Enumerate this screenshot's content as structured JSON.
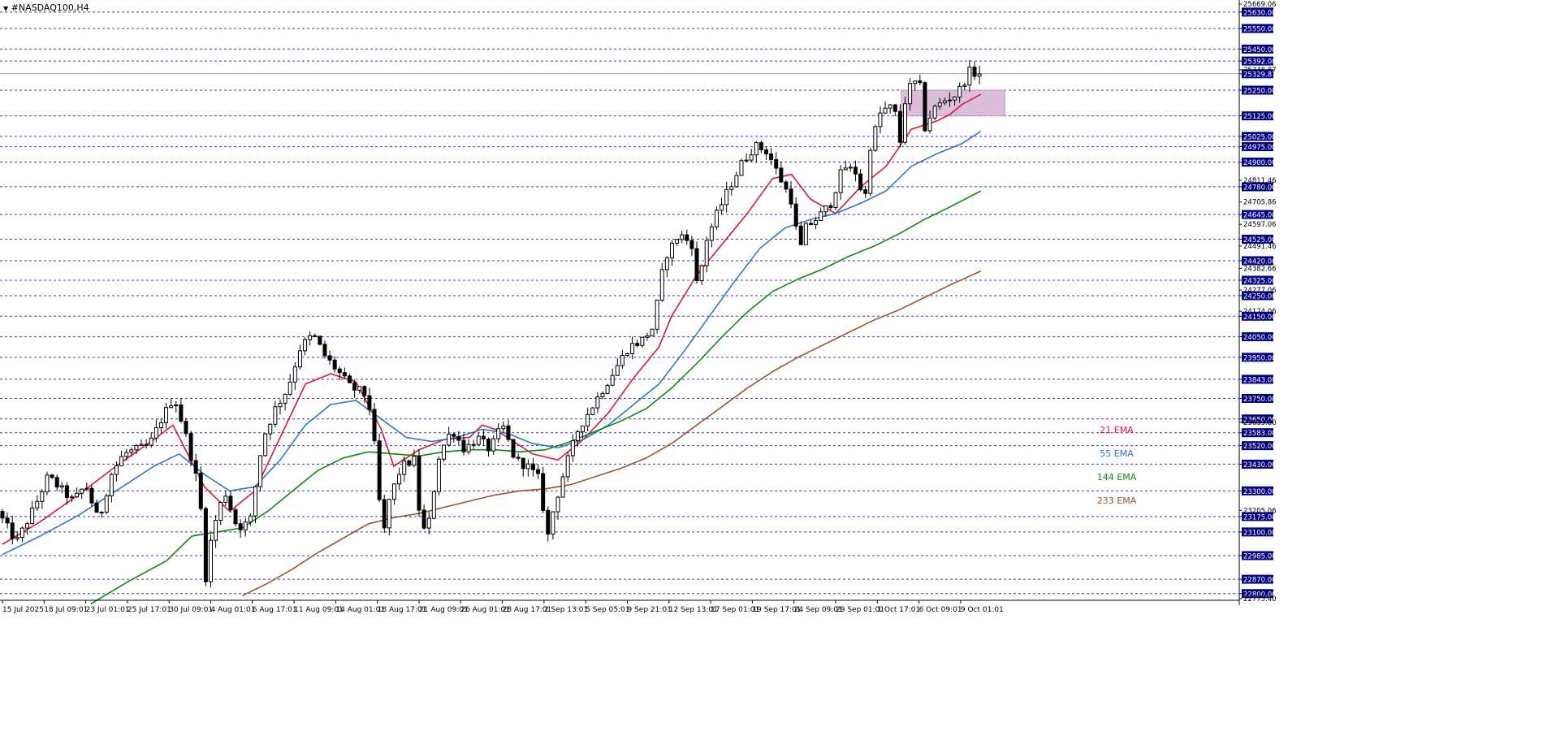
{
  "window": {
    "title": "#NASDAQ100,H4"
  },
  "colors": {
    "background": "#ffffff",
    "grid": "#1a1a9c",
    "up_body": "#ffffff",
    "down_body": "#000000",
    "wick": "#000000",
    "zone_fill": "#d9b8d6",
    "zone_stroke": "#b896b4",
    "price_tag_bg": "#000080",
    "price_tag_text": "#ffffff"
  },
  "chart_data": {
    "type": "candlestick",
    "symbol": "#NASDAQ100",
    "timeframe": "H4",
    "ylim": [
      22775.4,
      25669.06
    ],
    "grid": "horizontal dashed",
    "x_tick_labels": [
      "15 Jul 2025",
      "18 Jul 09:01",
      "23 Jul 01:01",
      "25 Jul 17:01",
      "30 Jul 09:01",
      "4 Aug 01:01",
      "6 Aug 17:01",
      "11 Aug 09:01",
      "14 Aug 01:01",
      "18 Aug 17:01",
      "21 Aug 09:01",
      "26 Aug 01:01",
      "28 Aug 17:01",
      "2 Sep 13:01",
      "5 Sep 05:01",
      "9 Sep 21:01",
      "12 Sep 13:01",
      "17 Sep 01:01",
      "19 Sep 17:01",
      "24 Sep 09:01",
      "29 Sep 01:01",
      "1 Oct 17:01",
      "6 Oct 09:01",
      "9 Oct 01:01"
    ],
    "y_tick_labels": [
      "25669.06",
      "25630.00",
      "25550.00",
      "25450.00",
      "25392.00",
      "25348.87",
      "25329.87",
      "25250.00",
      "25125.00",
      "25025.00",
      "24975.00",
      "24900.00",
      "24811.46",
      "24780.00",
      "24705.86",
      "24645.00",
      "24597.06",
      "24525.00",
      "24491.46",
      "24420.00",
      "24382.66",
      "24325.00",
      "24277.06",
      "24250.00",
      "24174.06",
      "24150.00",
      "24050.00",
      "23950.00",
      "23843.00",
      "23750.00",
      "23650.00",
      "23633.80",
      "23583.00",
      "23520.00",
      "23430.00",
      "23300.00",
      "23205.06",
      "23175.00",
      "23100.00",
      "22985.00",
      "22870.00",
      "22800.00",
      "22775.40"
    ],
    "highlighted_levels": [
      "25630.00",
      "25550.00",
      "25450.00",
      "25392.00",
      "25329.87",
      "25250.00",
      "25125.00",
      "25025.00",
      "24975.00",
      "24900.00",
      "24780.00",
      "24645.00",
      "24525.00",
      "24420.00",
      "24325.00",
      "24250.00",
      "24150.00",
      "24050.00",
      "23950.00",
      "23843.00",
      "23750.00",
      "23650.00",
      "23583.00",
      "23520.00",
      "23430.00",
      "23300.00",
      "23175.00",
      "23100.00",
      "22985.00",
      "22870.00",
      "22800.00"
    ],
    "current_price": "25329.87",
    "horizontal_levels": [
      25630,
      25550,
      25450,
      25392,
      25250,
      25125,
      25025,
      24975,
      24900,
      24780,
      24645,
      24525,
      24420,
      24325,
      24250,
      24150,
      24050,
      23950,
      23843,
      23750,
      23650,
      23583,
      23520,
      23430,
      23300,
      23175,
      23100,
      22985,
      22870,
      22800
    ],
    "zone": {
      "y_top": 25250,
      "y_bottom": 25125,
      "from_tick": "1 Oct 17:01",
      "to_after_tick": "9 Oct 01:01"
    },
    "ema_legend": [
      {
        "label": "21 EMA",
        "color": "#e0143c"
      },
      {
        "label": "55 EMA",
        "color": "#2e78c0"
      },
      {
        "label": "144 EMA",
        "color": "#0d8a0d"
      },
      {
        "label": "233 EMA",
        "color": "#a0522d"
      }
    ],
    "price_path": [
      [
        0,
        23200
      ],
      [
        1.5,
        23050
      ],
      [
        3,
        23230
      ],
      [
        4,
        23370
      ],
      [
        6,
        23250
      ],
      [
        7,
        23330
      ],
      [
        8,
        23150
      ],
      [
        9,
        23380
      ],
      [
        10,
        23480
      ],
      [
        12,
        23520
      ],
      [
        13,
        23650
      ],
      [
        14,
        23760
      ],
      [
        15,
        23550
      ],
      [
        16,
        23300
      ],
      [
        16.5,
        22880
      ],
      [
        17,
        23100
      ],
      [
        18,
        23300
      ],
      [
        19,
        23120
      ],
      [
        20,
        23150
      ],
      [
        21,
        23550
      ],
      [
        22,
        23700
      ],
      [
        23,
        23800
      ],
      [
        24,
        24000
      ],
      [
        25,
        24060
      ],
      [
        26,
        23950
      ],
      [
        27,
        23880
      ],
      [
        28,
        23800
      ],
      [
        29,
        23780
      ],
      [
        29.5,
        23700
      ],
      [
        30,
        23450
      ],
      [
        30.5,
        23050
      ],
      [
        31,
        23250
      ],
      [
        32,
        23420
      ],
      [
        33,
        23450
      ],
      [
        33.5,
        23150
      ],
      [
        34,
        23080
      ],
      [
        35,
        23480
      ],
      [
        36,
        23600
      ],
      [
        37,
        23500
      ],
      [
        38,
        23560
      ],
      [
        39,
        23500
      ],
      [
        40,
        23620
      ],
      [
        41,
        23450
      ],
      [
        42,
        23420
      ],
      [
        43,
        23350
      ],
      [
        43.5,
        23050
      ],
      [
        44,
        23200
      ],
      [
        45,
        23420
      ],
      [
        46,
        23600
      ],
      [
        47,
        23700
      ],
      [
        48,
        23800
      ],
      [
        49,
        23900
      ],
      [
        50,
        24000
      ],
      [
        51,
        24030
      ],
      [
        52,
        24100
      ],
      [
        52.5,
        24320
      ],
      [
        53,
        24450
      ],
      [
        54,
        24550
      ],
      [
        55,
        24500
      ],
      [
        55.5,
        24260
      ],
      [
        56,
        24500
      ],
      [
        57,
        24650
      ],
      [
        58,
        24780
      ],
      [
        59,
        24900
      ],
      [
        60,
        24980
      ],
      [
        61,
        24950
      ],
      [
        62,
        24820
      ],
      [
        63,
        24700
      ],
      [
        63.5,
        24450
      ],
      [
        64,
        24580
      ],
      [
        65,
        24630
      ],
      [
        66,
        24700
      ],
      [
        67,
        24880
      ],
      [
        68,
        24850
      ],
      [
        68.7,
        24700
      ],
      [
        69,
        24950
      ],
      [
        70,
        25150
      ],
      [
        71,
        25170
      ],
      [
        71.5,
        25000
      ],
      [
        72,
        25250
      ],
      [
        73,
        25300
      ],
      [
        73.5,
        25050
      ],
      [
        74,
        25150
      ],
      [
        75,
        25200
      ],
      [
        76,
        25230
      ],
      [
        77,
        25340
      ],
      [
        77.5,
        25330
      ]
    ],
    "ema_paths": {
      "21 EMA": [
        [
          0,
          23040
        ],
        [
          3,
          23150
        ],
        [
          6,
          23280
        ],
        [
          9,
          23420
        ],
        [
          12,
          23550
        ],
        [
          13.5,
          23620
        ],
        [
          16,
          23320
        ],
        [
          18,
          23200
        ],
        [
          20,
          23300
        ],
        [
          22,
          23560
        ],
        [
          24,
          23820
        ],
        [
          26,
          23870
        ],
        [
          28,
          23830
        ],
        [
          30,
          23600
        ],
        [
          31,
          23420
        ],
        [
          33,
          23500
        ],
        [
          35,
          23550
        ],
        [
          37,
          23560
        ],
        [
          38,
          23620
        ],
        [
          39,
          23600
        ],
        [
          40,
          23560
        ],
        [
          42,
          23480
        ],
        [
          44,
          23450
        ],
        [
          46,
          23550
        ],
        [
          48,
          23680
        ],
        [
          50,
          23850
        ],
        [
          52,
          24000
        ],
        [
          53,
          24150
        ],
        [
          55,
          24350
        ],
        [
          57,
          24500
        ],
        [
          59,
          24650
        ],
        [
          61,
          24820
        ],
        [
          62.5,
          24840
        ],
        [
          64,
          24720
        ],
        [
          66,
          24650
        ],
        [
          68,
          24780
        ],
        [
          70,
          24880
        ],
        [
          72,
          25060
        ],
        [
          74,
          25100
        ],
        [
          75,
          25130
        ],
        [
          76,
          25180
        ],
        [
          77.5,
          25230
        ]
      ],
      "55 EMA": [
        [
          0,
          22990
        ],
        [
          3,
          23080
        ],
        [
          6,
          23180
        ],
        [
          9,
          23300
        ],
        [
          12,
          23420
        ],
        [
          14,
          23480
        ],
        [
          16,
          23380
        ],
        [
          18,
          23300
        ],
        [
          20,
          23320
        ],
        [
          22,
          23450
        ],
        [
          24,
          23620
        ],
        [
          26,
          23720
        ],
        [
          28,
          23740
        ],
        [
          30,
          23650
        ],
        [
          32,
          23560
        ],
        [
          34,
          23540
        ],
        [
          36,
          23560
        ],
        [
          38,
          23600
        ],
        [
          40,
          23580
        ],
        [
          42,
          23530
        ],
        [
          44,
          23510
        ],
        [
          46,
          23550
        ],
        [
          48,
          23620
        ],
        [
          50,
          23720
        ],
        [
          52,
          23820
        ],
        [
          54,
          23980
        ],
        [
          56,
          24150
        ],
        [
          58,
          24320
        ],
        [
          60,
          24480
        ],
        [
          62,
          24580
        ],
        [
          64,
          24620
        ],
        [
          66,
          24650
        ],
        [
          68,
          24700
        ],
        [
          70,
          24760
        ],
        [
          72,
          24880
        ],
        [
          74,
          24940
        ],
        [
          76,
          24990
        ],
        [
          77.5,
          25050
        ]
      ],
      "144 EMA": [
        [
          7,
          22750
        ],
        [
          10,
          22860
        ],
        [
          13,
          22960
        ],
        [
          15,
          23080
        ],
        [
          17,
          23100
        ],
        [
          19,
          23120
        ],
        [
          21,
          23200
        ],
        [
          23,
          23300
        ],
        [
          25,
          23400
        ],
        [
          27,
          23460
        ],
        [
          29,
          23490
        ],
        [
          31,
          23480
        ],
        [
          33,
          23470
        ],
        [
          35,
          23490
        ],
        [
          37,
          23500
        ],
        [
          39,
          23500
        ],
        [
          41,
          23490
        ],
        [
          43,
          23500
        ],
        [
          45,
          23540
        ],
        [
          47,
          23590
        ],
        [
          49,
          23640
        ],
        [
          51,
          23700
        ],
        [
          53,
          23800
        ],
        [
          55,
          23920
        ],
        [
          57,
          24050
        ],
        [
          59,
          24170
        ],
        [
          61,
          24270
        ],
        [
          63,
          24330
        ],
        [
          65,
          24380
        ],
        [
          67,
          24440
        ],
        [
          69,
          24490
        ],
        [
          71,
          24550
        ],
        [
          73,
          24620
        ],
        [
          75,
          24680
        ],
        [
          77.5,
          24760
        ]
      ],
      "233 EMA": [
        [
          19,
          22790
        ],
        [
          21,
          22850
        ],
        [
          23,
          22920
        ],
        [
          25,
          23000
        ],
        [
          27,
          23070
        ],
        [
          29,
          23140
        ],
        [
          31,
          23170
        ],
        [
          33,
          23190
        ],
        [
          35,
          23220
        ],
        [
          37,
          23250
        ],
        [
          39,
          23280
        ],
        [
          41,
          23300
        ],
        [
          43,
          23310
        ],
        [
          45,
          23330
        ],
        [
          47,
          23370
        ],
        [
          49,
          23410
        ],
        [
          51,
          23460
        ],
        [
          53,
          23530
        ],
        [
          55,
          23620
        ],
        [
          57,
          23710
        ],
        [
          59,
          23800
        ],
        [
          61,
          23880
        ],
        [
          63,
          23950
        ],
        [
          65,
          24010
        ],
        [
          67,
          24070
        ],
        [
          69,
          24130
        ],
        [
          71,
          24180
        ],
        [
          73,
          24240
        ],
        [
          75,
          24300
        ],
        [
          77.5,
          24370
        ]
      ]
    }
  }
}
